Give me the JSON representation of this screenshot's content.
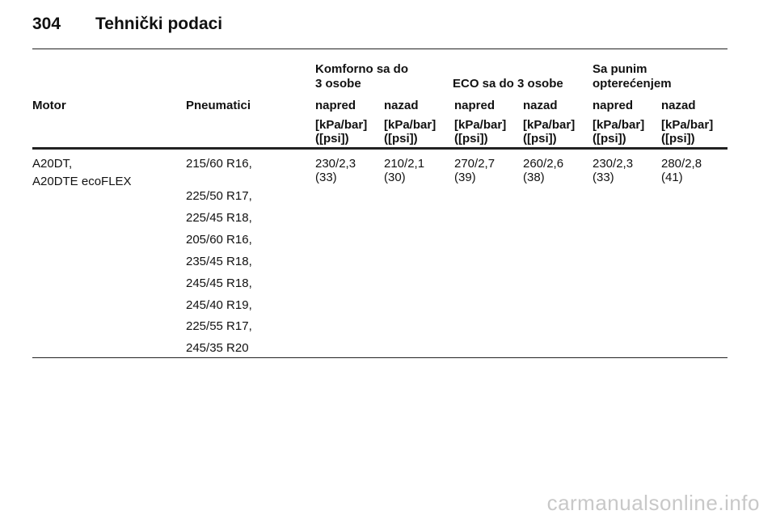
{
  "header": {
    "page_number": "304",
    "title": "Tehnički podaci"
  },
  "table": {
    "groups": [
      [
        "Komforno sa do",
        "3 osobe"
      ],
      [
        "ECO sa do 3 osobe"
      ],
      [
        "Sa punim",
        "opterećenjem"
      ]
    ],
    "columns": [
      "Motor",
      "Pneumatici",
      "napred",
      "nazad",
      "napred",
      "nazad",
      "napred",
      "nazad"
    ],
    "units": [
      [
        "[kPa/bar]",
        "([psi])"
      ],
      [
        "[kPa/bar]",
        "([psi])"
      ],
      [
        "[kPa/bar]",
        "([psi])"
      ],
      [
        "[kPa/bar]",
        "([psi])"
      ],
      [
        "[kPa/bar]",
        "([psi])"
      ],
      [
        "[kPa/bar]",
        "([psi])"
      ]
    ],
    "rows": [
      {
        "motor": [
          "A20DT,",
          "A20DTE ecoFLEX"
        ],
        "tires": [
          "215/60 R16,",
          "225/50 R17,",
          "225/45 R18,",
          "205/60 R16,",
          "235/45 R18,",
          "245/45 R18,",
          "245/40 R19,",
          "225/55 R17,",
          "245/35 R20"
        ],
        "pressures": [
          [
            "230/2,3",
            "(33)"
          ],
          [
            "210/2,1",
            "(30)"
          ],
          [
            "270/2,7",
            "(39)"
          ],
          [
            "260/2,6",
            "(38)"
          ],
          [
            "230/2,3",
            "(33)"
          ],
          [
            "280/2,8",
            "(41)"
          ]
        ]
      }
    ]
  },
  "watermark": "carmanualsonline.info"
}
